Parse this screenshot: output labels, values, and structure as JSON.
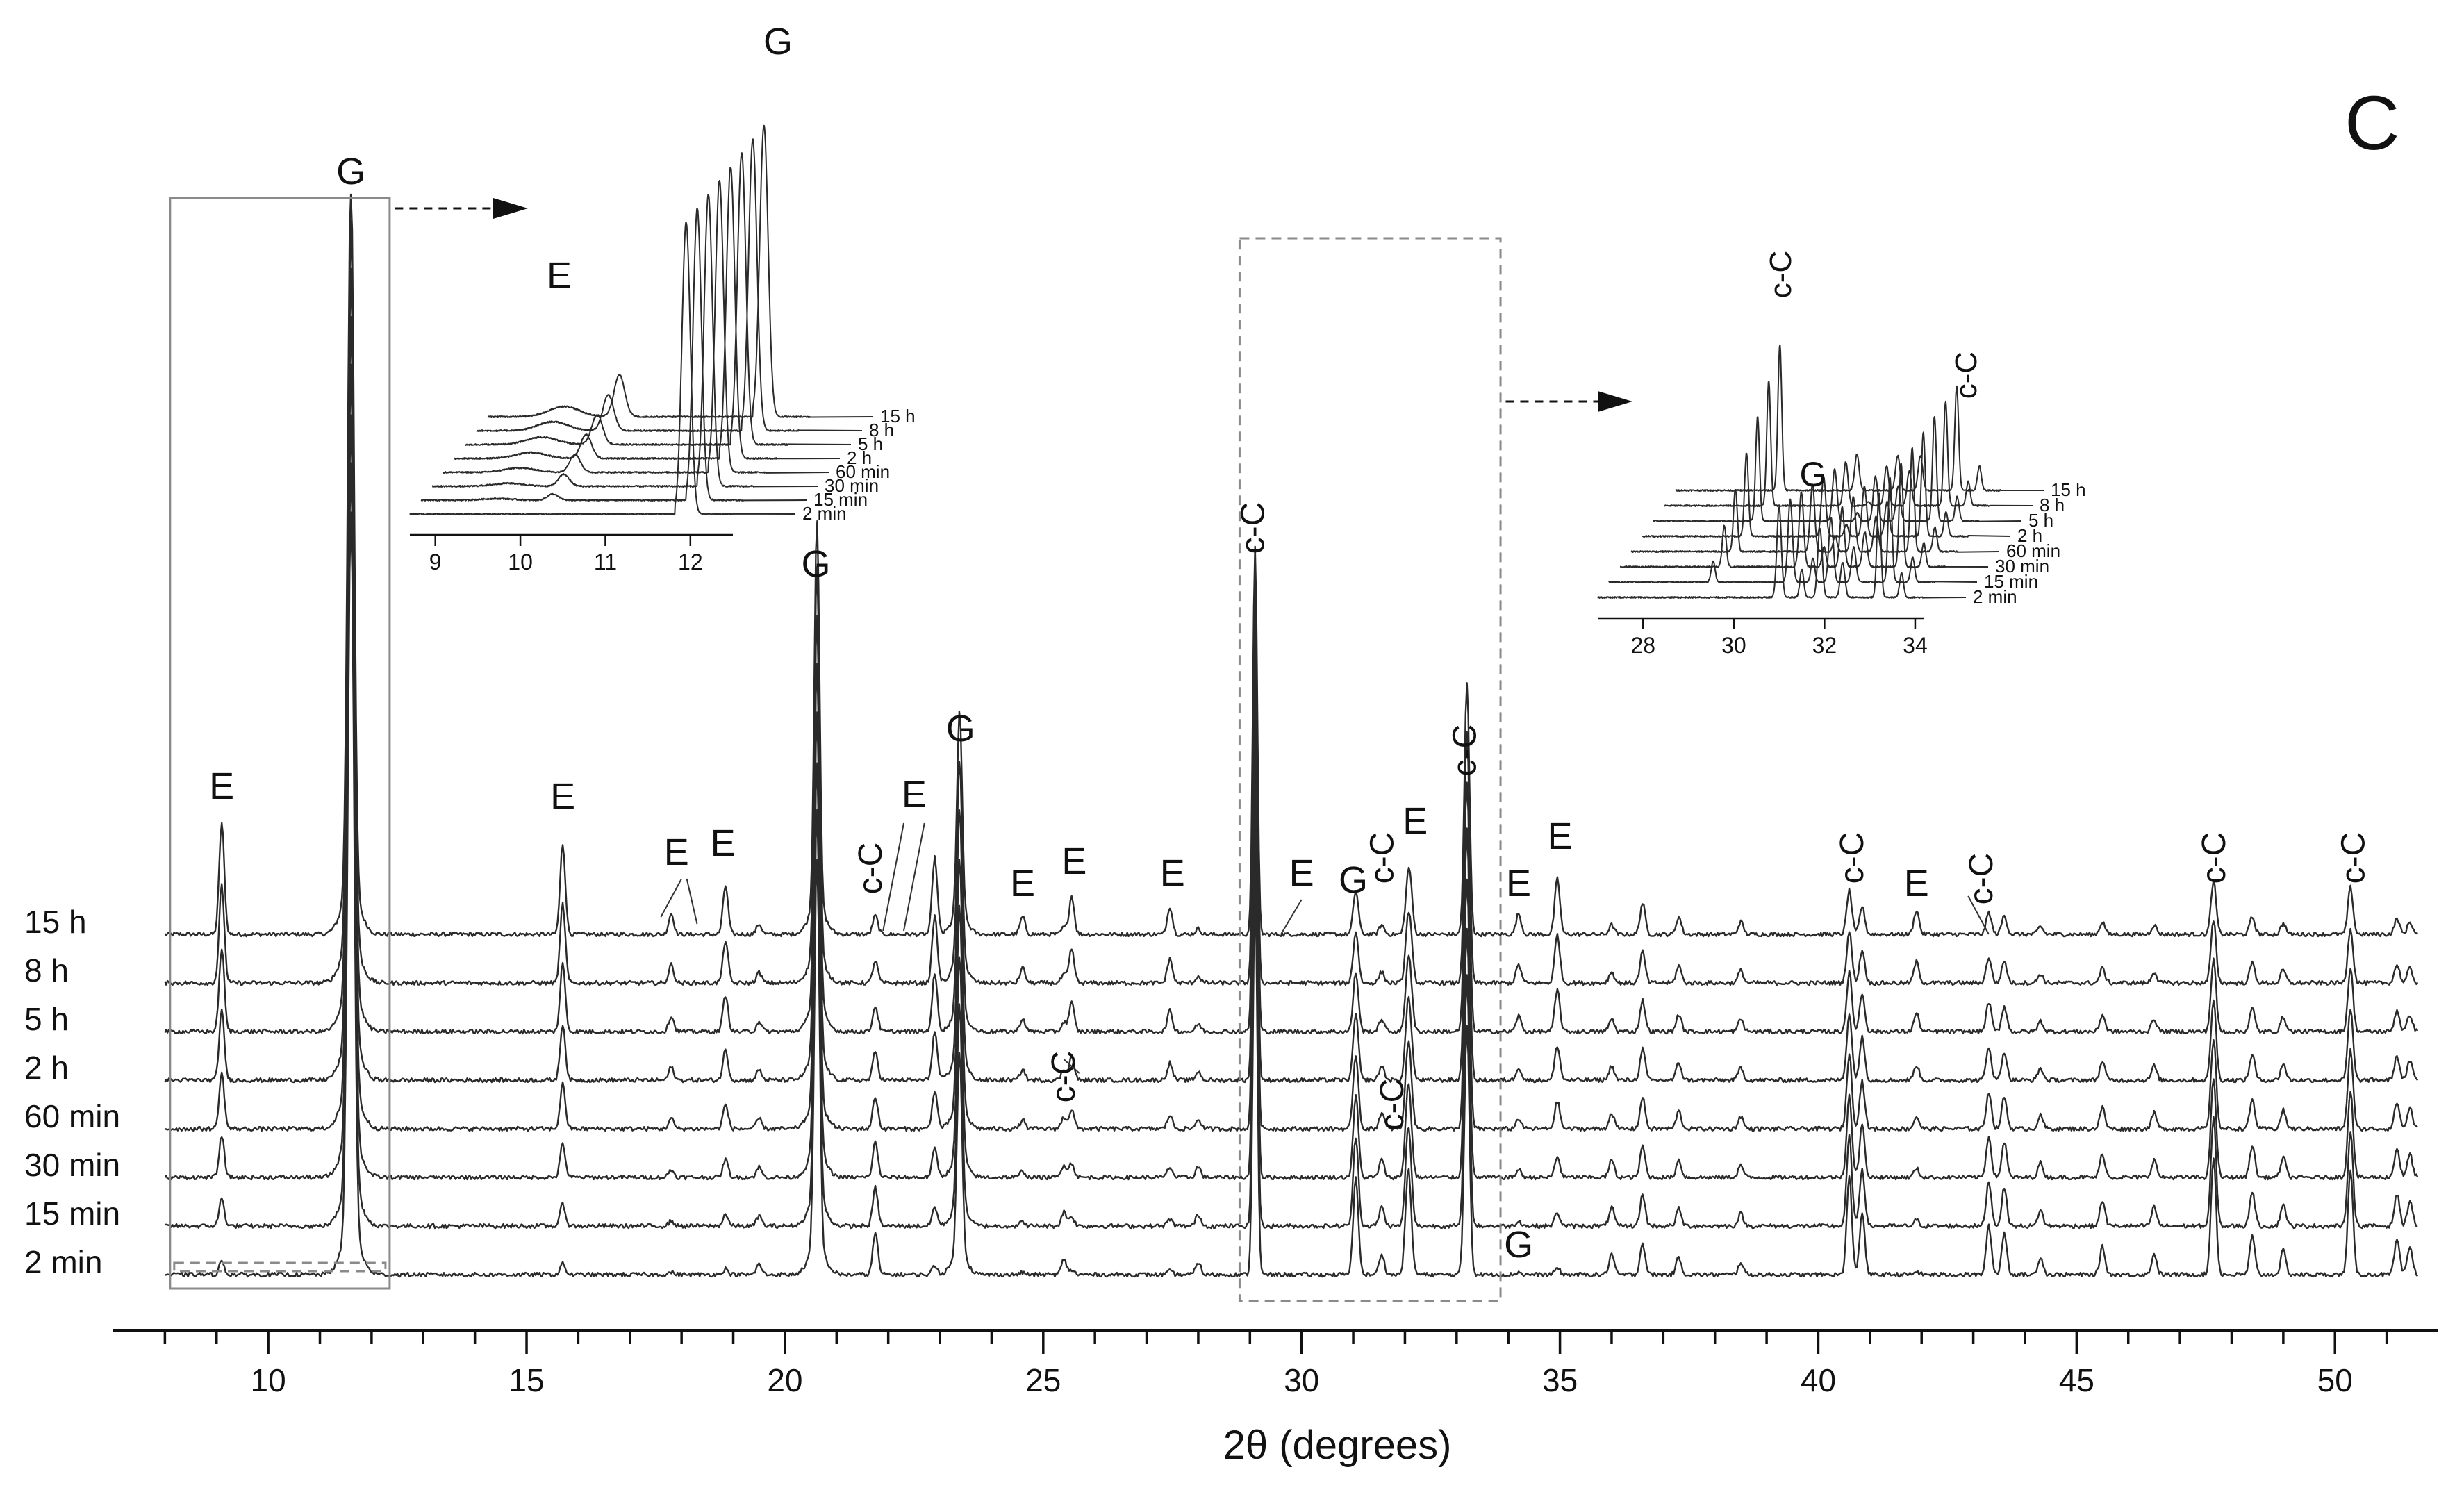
{
  "panel_letter": "C",
  "chart_data": {
    "type": "line",
    "title": "",
    "xlabel": "2θ (degrees)",
    "ylabel": "",
    "xlim": [
      7,
      52
    ],
    "xticks": [
      10,
      15,
      20,
      25,
      30,
      35,
      40,
      45,
      50
    ],
    "stacked": true,
    "grid": false,
    "legend": "series labels at left of each trace",
    "series": [
      {
        "name": "15 h"
      },
      {
        "name": "8 h"
      },
      {
        "name": "5 h"
      },
      {
        "name": "2 h"
      },
      {
        "name": "60 min"
      },
      {
        "name": "30 min"
      },
      {
        "name": "15 min"
      },
      {
        "name": "2 min"
      }
    ],
    "peak_labels": [
      {
        "text": "E",
        "x": 9.1
      },
      {
        "text": "G",
        "x": 11.6
      },
      {
        "text": "E",
        "x": 15.7
      },
      {
        "text": "E",
        "x": 17.9
      },
      {
        "text": "E",
        "x": 18.8
      },
      {
        "text": "G",
        "x": 20.6
      },
      {
        "text": "c-C",
        "x": 21.7
      },
      {
        "text": "E",
        "x": 22.5
      },
      {
        "text": "G",
        "x": 23.4
      },
      {
        "text": "E",
        "x": 24.6
      },
      {
        "text": "E",
        "x": 25.6
      },
      {
        "text": "c-C",
        "x": 25.3
      },
      {
        "text": "E",
        "x": 27.5
      },
      {
        "text": "c-C",
        "x": 29.1
      },
      {
        "text": "E",
        "x": 30
      },
      {
        "text": "G",
        "x": 31
      },
      {
        "text": "c-C",
        "x": 31.6
      },
      {
        "text": "c-C",
        "x": 31.8
      },
      {
        "text": "E",
        "x": 32.2
      },
      {
        "text": "c-C",
        "x": 33.2
      },
      {
        "text": "E",
        "x": 34.2
      },
      {
        "text": "G",
        "x": 34.2
      },
      {
        "text": "E",
        "x": 35
      },
      {
        "text": "c-C",
        "x": 40.7
      },
      {
        "text": "E",
        "x": 41.9
      },
      {
        "text": "c-C",
        "x": 43.2
      },
      {
        "text": "c-C",
        "x": 47.7
      },
      {
        "text": "c-C",
        "x": 50.4
      }
    ],
    "insets": [
      {
        "xlim": [
          8.7,
          12.5
        ],
        "xticks": [
          9,
          10,
          11,
          12
        ],
        "series": [
          "15 h",
          "8 h",
          "5 h",
          "2 h",
          "60 min",
          "30 min",
          "15 min",
          "2 min"
        ],
        "peak_labels": [
          {
            "text": "E",
            "x": 10.3
          },
          {
            "text": "G",
            "x": 11.9
          }
        ]
      },
      {
        "xlim": [
          27,
          34.2
        ],
        "xticks": [
          28,
          30,
          32,
          34
        ],
        "series": [
          "15 h",
          "8 h",
          "5 h",
          "2 h",
          "60 min",
          "30 min",
          "15 min",
          "2 min"
        ],
        "peak_labels": [
          {
            "text": "c-C",
            "x": 31.3
          },
          {
            "text": "c-C",
            "x": 33.4
          },
          {
            "text": "G",
            "x": 31.2
          }
        ]
      }
    ]
  }
}
